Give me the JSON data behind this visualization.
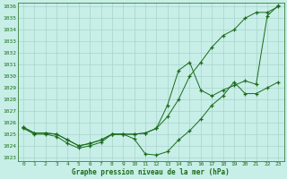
{
  "title": "Graphe pression niveau de la mer (hPa)",
  "bg_color": "#c8eee8",
  "grid_color": "#a8d4cc",
  "line_color": "#1a6b1a",
  "ylim": [
    1023,
    1036
  ],
  "xlim": [
    -0.5,
    23.5
  ],
  "yticks": [
    1023,
    1024,
    1025,
    1026,
    1027,
    1028,
    1029,
    1030,
    1031,
    1032,
    1033,
    1034,
    1035,
    1036
  ],
  "xticks": [
    0,
    1,
    2,
    3,
    4,
    5,
    6,
    7,
    8,
    9,
    10,
    11,
    12,
    13,
    14,
    15,
    16,
    17,
    18,
    19,
    20,
    21,
    22,
    23
  ],
  "line1_x": [
    0,
    1,
    2,
    3,
    4,
    5,
    6,
    7,
    8,
    9,
    10,
    11,
    12,
    13,
    14,
    15,
    16,
    17,
    18,
    19,
    20,
    21,
    22,
    23
  ],
  "line1_y": [
    1025.5,
    1025.0,
    1025.0,
    1024.8,
    1024.2,
    1023.8,
    1024.0,
    1024.3,
    1025.0,
    1025.0,
    1024.6,
    1023.3,
    1023.2,
    1023.5,
    1024.5,
    1025.3,
    1026.3,
    1027.5,
    1028.3,
    1029.5,
    1028.5,
    1028.5,
    1029.0,
    1029.5
  ],
  "line2_x": [
    0,
    1,
    2,
    3,
    4,
    5,
    6,
    7,
    8,
    9,
    10,
    11,
    12,
    13,
    14,
    15,
    16,
    17,
    18,
    19,
    20,
    21,
    22,
    23
  ],
  "line2_y": [
    1025.6,
    1025.1,
    1025.1,
    1025.0,
    1024.5,
    1024.0,
    1024.2,
    1024.5,
    1025.0,
    1025.0,
    1025.0,
    1025.1,
    1025.5,
    1026.5,
    1028.0,
    1030.0,
    1031.2,
    1032.5,
    1033.5,
    1034.0,
    1035.0,
    1035.5,
    1035.5,
    1036.0
  ],
  "line3_x": [
    0,
    1,
    2,
    3,
    4,
    5,
    6,
    7,
    8,
    9,
    10,
    11,
    12,
    13,
    14,
    15,
    16,
    17,
    18,
    19,
    20,
    21,
    22,
    23
  ],
  "line3_y": [
    1025.6,
    1025.1,
    1025.1,
    1025.0,
    1024.5,
    1024.0,
    1024.2,
    1024.5,
    1025.0,
    1025.0,
    1025.0,
    1025.1,
    1025.5,
    1027.5,
    1030.5,
    1031.2,
    1028.8,
    1028.3,
    1028.8,
    1029.2,
    1029.6,
    1029.3,
    1035.2,
    1036.1
  ]
}
